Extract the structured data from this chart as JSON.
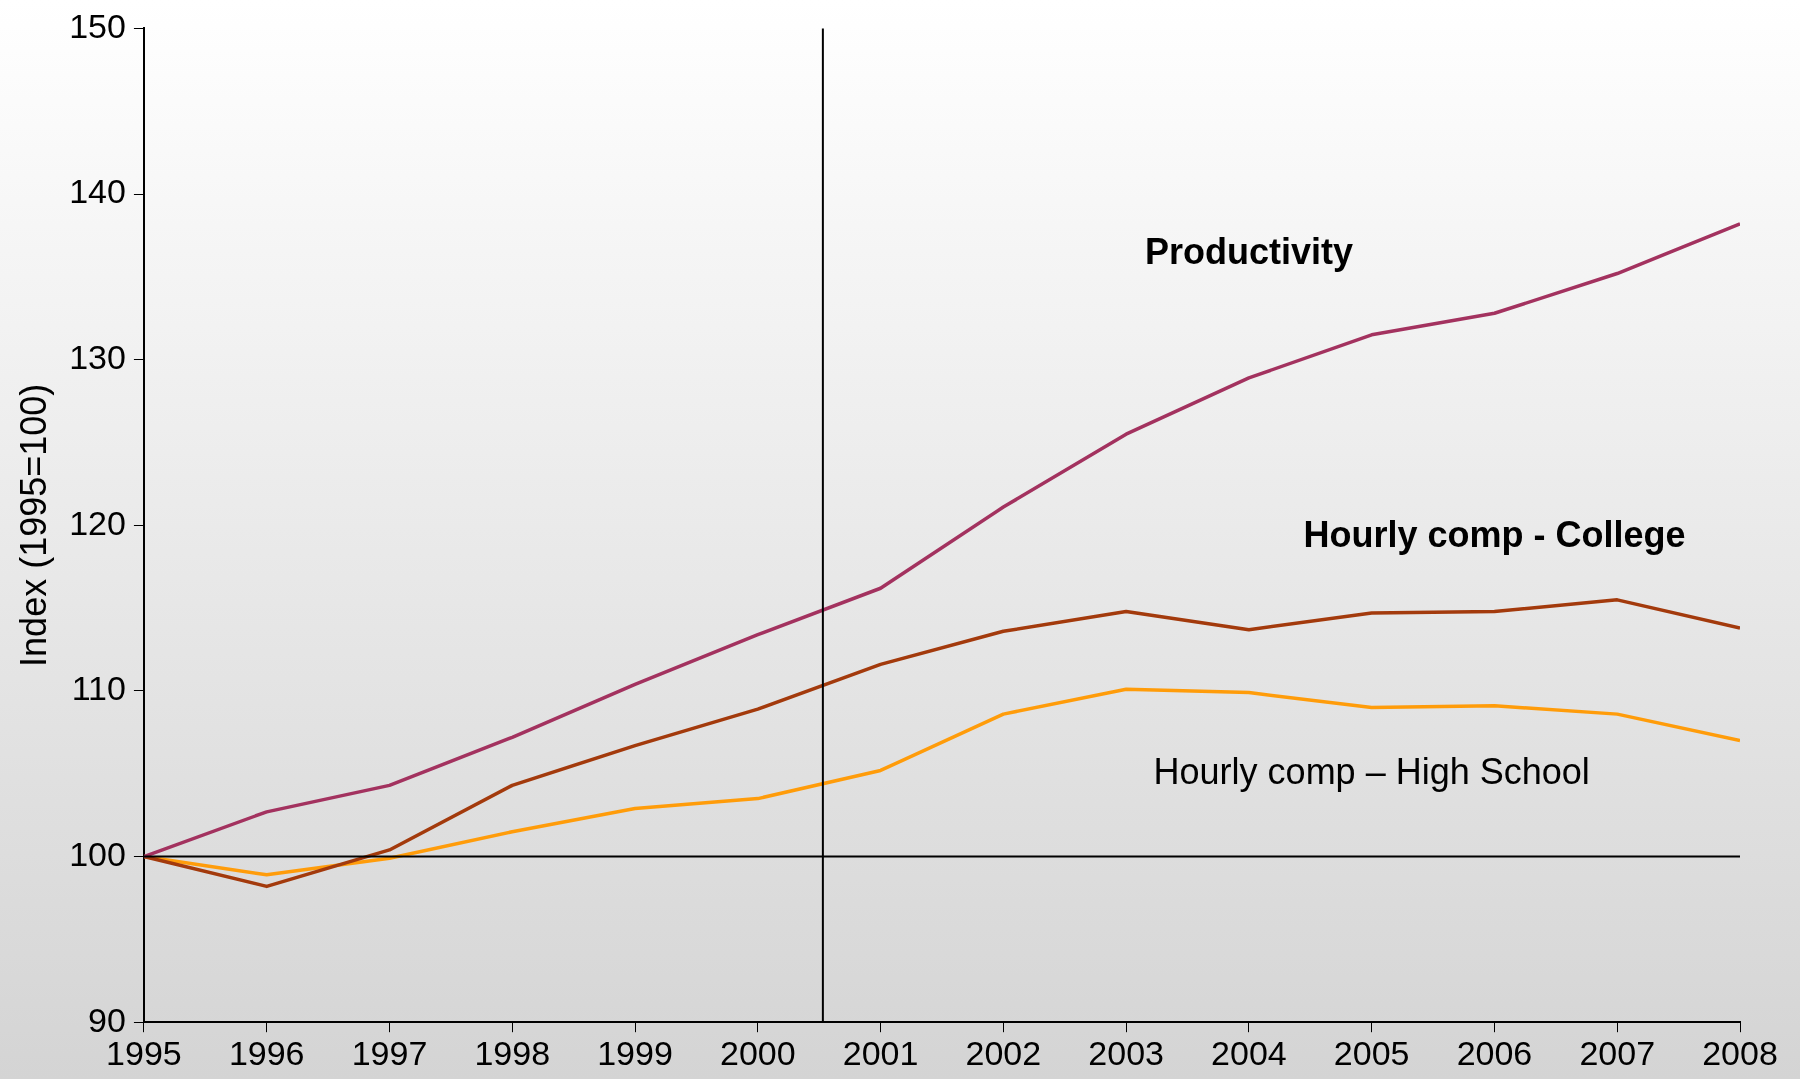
{
  "chart_data": {
    "type": "line",
    "ylabel": "Index (1995=100)",
    "x": [
      1995,
      1996,
      1997,
      1998,
      1999,
      2000,
      2001,
      2002,
      2003,
      2004,
      2005,
      2006,
      2007,
      2008
    ],
    "xlim": [
      1995,
      2008
    ],
    "xticks": [
      1995,
      1996,
      1997,
      1998,
      1999,
      2000,
      2001,
      2002,
      2003,
      2004,
      2005,
      2006,
      2007,
      2008
    ],
    "ylim": [
      90,
      150
    ],
    "yticks": [
      90,
      100,
      110,
      120,
      130,
      140,
      150
    ],
    "grid": false,
    "legend": false,
    "marker": "none",
    "line_style": "solid",
    "series": [
      {
        "name": "Productivity",
        "color": "#a3325f",
        "values": [
          100,
          102.7,
          104.3,
          107.2,
          110.4,
          113.4,
          116.2,
          121.1,
          125.5,
          128.9,
          131.5,
          132.8,
          135.2,
          138.2
        ]
      },
      {
        "name": "Hourly comp - College",
        "color": "#a33a0c",
        "values": [
          100,
          98.2,
          100.4,
          104.3,
          106.7,
          108.9,
          111.6,
          113.6,
          114.8,
          113.7,
          114.7,
          114.8,
          115.5,
          113.8
        ]
      },
      {
        "name": "Hourly comp – High School",
        "color": "#ff9c0a",
        "values": [
          100,
          98.9,
          99.9,
          101.5,
          102.9,
          103.5,
          105.2,
          108.6,
          110.1,
          109.9,
          109.0,
          109.1,
          108.6,
          107.0
        ]
      }
    ],
    "ref_lines": [
      {
        "axis": "x",
        "value": 2000.53,
        "color": "#000000"
      },
      {
        "axis": "y",
        "value": 100,
        "color": "#000000"
      }
    ]
  }
}
